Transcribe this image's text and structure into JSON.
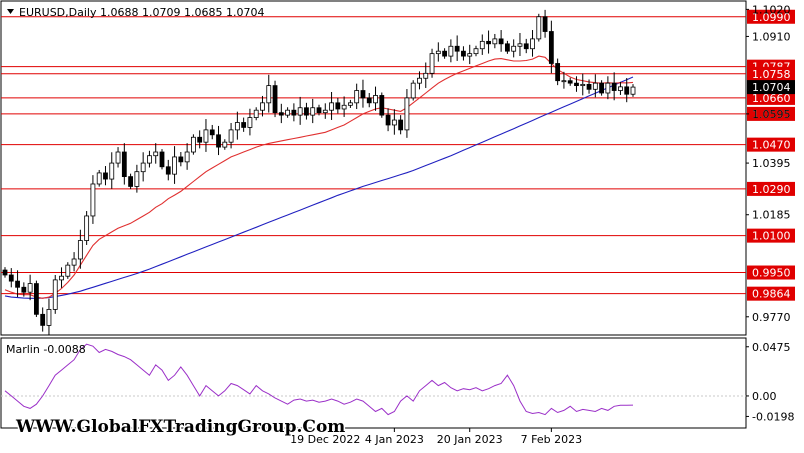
{
  "header": {
    "symbol": "EURUSD,Daily",
    "ohlc": "1.0688 1.0709 1.0685 1.0704"
  },
  "watermark": "WWW.GlobalFXTradingGroup.Com",
  "colors": {
    "background": "#ffffff",
    "axis": "#000000",
    "level_line": "#e00000",
    "ma_fast": "#e03030",
    "ma_slow": "#2020c0",
    "oscillator": "#9b30c8",
    "bull_candle": "#ffffff",
    "bear_candle": "#000000"
  },
  "chart_data": [
    {
      "type": "candlestick",
      "title": "EURUSD,Daily",
      "ylim": [
        0.97,
        1.105
      ],
      "y_ticks": [
        "1.1020",
        "1.0910",
        "1.0595",
        "1.0395",
        "1.0185",
        "0.9770"
      ],
      "x_ticks": [
        {
          "label": "19 Dec 2022",
          "index": 51
        },
        {
          "label": "4 Jan 2023",
          "index": 62
        },
        {
          "label": "20 Jan 2023",
          "index": 74
        },
        {
          "label": "7 Feb 2023",
          "index": 87
        }
      ],
      "levels": [
        {
          "label": "1.0990",
          "value": 1.099
        },
        {
          "label": "1.0787",
          "value": 1.0787
        },
        {
          "label": "1.0758",
          "value": 1.0758
        },
        {
          "label": "1.0660",
          "value": 1.066
        },
        {
          "label": "1.0595",
          "value": 1.0595
        },
        {
          "label": "1.0470",
          "value": 1.047
        },
        {
          "label": "1.0290",
          "value": 1.029
        },
        {
          "label": "1.0100",
          "value": 1.01
        },
        {
          "label": "0.9950",
          "value": 0.995
        },
        {
          "label": "0.9864",
          "value": 0.9864
        }
      ],
      "current_price": {
        "label": "1.0704",
        "value": 1.0704
      },
      "closes": [
        0.994,
        0.9915,
        0.989,
        0.987,
        0.9905,
        0.978,
        0.9735,
        0.98,
        0.992,
        0.9935,
        0.998,
        1.0005,
        1.008,
        1.018,
        1.031,
        1.0355,
        1.033,
        1.0395,
        1.044,
        1.034,
        1.03,
        1.036,
        1.0395,
        1.0425,
        1.044,
        1.038,
        1.035,
        1.042,
        1.04,
        1.044,
        1.05,
        1.048,
        1.053,
        1.051,
        1.046,
        1.048,
        1.053,
        1.056,
        1.054,
        1.058,
        1.061,
        1.064,
        1.071,
        1.06,
        1.059,
        1.061,
        1.059,
        1.062,
        1.059,
        1.062,
        1.06,
        1.061,
        1.064,
        1.0615,
        1.063,
        1.064,
        1.069,
        1.066,
        1.064,
        1.067,
        1.059,
        1.055,
        1.057,
        1.053,
        1.066,
        1.072,
        1.074,
        1.076,
        1.084,
        1.085,
        1.083,
        1.087,
        1.085,
        1.083,
        1.084,
        1.086,
        1.089,
        1.088,
        1.09,
        1.088,
        1.085,
        1.087,
        1.088,
        1.086,
        1.09,
        1.099,
        1.093,
        1.08,
        1.073,
        1.073,
        1.072,
        1.071,
        1.0715,
        1.0695,
        1.072,
        1.068,
        1.072,
        1.069,
        1.0705,
        1.0675,
        1.0704
      ],
      "ma_fast": [
        0.988,
        0.987,
        0.9862,
        0.986,
        0.986,
        0.985,
        0.9845,
        0.985,
        0.9865,
        0.9885,
        0.991,
        0.994,
        0.998,
        1.002,
        1.006,
        1.0085,
        1.01,
        1.0115,
        1.013,
        1.014,
        1.015,
        1.0165,
        1.018,
        1.0195,
        1.0215,
        1.023,
        1.025,
        1.0265,
        1.028,
        1.03,
        1.032,
        1.034,
        1.036,
        1.0375,
        1.039,
        1.0405,
        1.042,
        1.043,
        1.044,
        1.045,
        1.046,
        1.0468,
        1.0475,
        1.048,
        1.0485,
        1.049,
        1.0495,
        1.05,
        1.0505,
        1.051,
        1.0515,
        1.052,
        1.053,
        1.054,
        1.055,
        1.0565,
        1.058,
        1.0595,
        1.0605,
        1.0615,
        1.062,
        1.0615,
        1.061,
        1.0605,
        1.062,
        1.064,
        1.066,
        1.068,
        1.07,
        1.072,
        1.0735,
        1.0748,
        1.076,
        1.077,
        1.078,
        1.079,
        1.08,
        1.081,
        1.0818,
        1.082,
        1.0815,
        1.081,
        1.081,
        1.0812,
        1.0818,
        1.083,
        1.0825,
        1.08,
        1.0775,
        1.076,
        1.0745,
        1.0735,
        1.073,
        1.0725,
        1.0722,
        1.072,
        1.0722,
        1.072,
        1.0722,
        1.0721,
        1.0723
      ],
      "ma_slow": [
        0.9855,
        0.985,
        0.9848,
        0.9846,
        0.9845,
        0.9845,
        0.9846,
        0.9848,
        0.9852,
        0.9857,
        0.9862,
        0.9868,
        0.9874,
        0.9882,
        0.989,
        0.9898,
        0.9906,
        0.9914,
        0.9922,
        0.993,
        0.9938,
        0.9946,
        0.9955,
        0.9964,
        0.9974,
        0.9984,
        0.9994,
        1.0004,
        1.0014,
        1.0024,
        1.0034,
        1.0044,
        1.0054,
        1.0064,
        1.0074,
        1.0084,
        1.0094,
        1.0104,
        1.0114,
        1.0124,
        1.0134,
        1.0144,
        1.0154,
        1.0164,
        1.0174,
        1.0184,
        1.0194,
        1.0204,
        1.0214,
        1.0224,
        1.0234,
        1.0244,
        1.0254,
        1.0264,
        1.0273,
        1.0282,
        1.0291,
        1.03,
        1.0308,
        1.0316,
        1.0324,
        1.0332,
        1.034,
        1.0348,
        1.0356,
        1.0365,
        1.0375,
        1.0385,
        1.0395,
        1.0405,
        1.0415,
        1.0425,
        1.0436,
        1.0447,
        1.0458,
        1.0469,
        1.048,
        1.0491,
        1.0502,
        1.0513,
        1.0524,
        1.0535,
        1.0546,
        1.0557,
        1.0568,
        1.058,
        1.0591,
        1.0602,
        1.0613,
        1.0624,
        1.0635,
        1.0646,
        1.0657,
        1.0668,
        1.0679,
        1.069,
        1.0701,
        1.0712,
        1.0723,
        1.0734,
        1.0745
      ]
    },
    {
      "type": "line",
      "title": "Marlin -0.0088",
      "ylim": [
        -0.03,
        0.055
      ],
      "y_ticks": [
        "0.0475",
        "0.00",
        "-0.0198"
      ],
      "series": [
        {
          "values": [
            0.005,
            0.0,
            -0.005,
            -0.01,
            -0.012,
            -0.008,
            0.0,
            0.01,
            0.02,
            0.025,
            0.03,
            0.035,
            0.045,
            0.05,
            0.048,
            0.042,
            0.045,
            0.043,
            0.04,
            0.038,
            0.035,
            0.03,
            0.025,
            0.02,
            0.03,
            0.025,
            0.015,
            0.02,
            0.028,
            0.02,
            0.01,
            0.0,
            0.01,
            0.005,
            0.0,
            0.005,
            0.012,
            0.01,
            0.006,
            0.002,
            0.01,
            0.005,
            0.002,
            -0.002,
            -0.005,
            -0.008,
            -0.004,
            -0.003,
            -0.005,
            -0.004,
            -0.006,
            -0.005,
            -0.003,
            -0.005,
            -0.008,
            -0.006,
            -0.003,
            -0.005,
            -0.01,
            -0.015,
            -0.012,
            -0.018,
            -0.015,
            -0.005,
            0.0,
            -0.005,
            0.005,
            0.01,
            0.015,
            0.01,
            0.013,
            0.008,
            0.005,
            0.007,
            0.006,
            0.008,
            0.005,
            0.007,
            0.01,
            0.012,
            0.02,
            0.01,
            -0.005,
            -0.015,
            -0.017,
            -0.016,
            -0.018,
            -0.012,
            -0.016,
            -0.014,
            -0.01,
            -0.015,
            -0.013,
            -0.014,
            -0.015,
            -0.012,
            -0.014,
            -0.01,
            -0.009,
            -0.009,
            -0.0088
          ]
        }
      ]
    }
  ]
}
